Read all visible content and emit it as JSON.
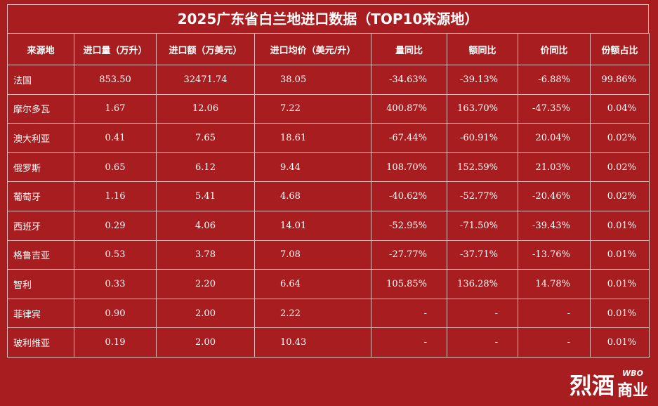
{
  "header": {
    "title": "2025广东省白兰地进口数据（TOP10来源地）"
  },
  "table": {
    "columns": [
      "来源地",
      "进口量（万升）",
      "进口额（万美元）",
      "进口均价（美元/升）",
      "量同比",
      "额同比",
      "价同比",
      "份额占比"
    ],
    "rows": [
      [
        "法国",
        "853.50",
        "32471.74",
        "38.05",
        "-34.63%",
        "-39.13%",
        "-6.88%",
        "99.86%"
      ],
      [
        "摩尔多瓦",
        "1.67",
        "12.06",
        "7.22",
        "400.87%",
        "163.70%",
        "-47.35%",
        "0.04%"
      ],
      [
        "澳大利亚",
        "0.41",
        "7.65",
        "18.61",
        "-67.44%",
        "-60.91%",
        "20.04%",
        "0.02%"
      ],
      [
        "俄罗斯",
        "0.65",
        "6.12",
        "9.44",
        "108.70%",
        "152.59%",
        "21.03%",
        "0.02%"
      ],
      [
        "葡萄牙",
        "1.16",
        "5.41",
        "4.68",
        "-40.62%",
        "-52.77%",
        "-20.46%",
        "0.02%"
      ],
      [
        "西班牙",
        "0.29",
        "4.06",
        "14.01",
        "-52.95%",
        "-71.50%",
        "-39.43%",
        "0.01%"
      ],
      [
        "格鲁吉亚",
        "0.53",
        "3.78",
        "7.08",
        "-27.77%",
        "-37.71%",
        "-13.76%",
        "0.01%"
      ],
      [
        "智利",
        "0.33",
        "2.20",
        "6.64",
        "105.85%",
        "136.28%",
        "14.78%",
        "0.01%"
      ],
      [
        "菲律宾",
        "0.90",
        "2.00",
        "2.22",
        "-",
        "-",
        "-",
        "0.01%"
      ],
      [
        "玻利维亚",
        "0.19",
        "2.00",
        "10.43",
        "-",
        "-",
        "-",
        "0.01%"
      ]
    ]
  },
  "logo": {
    "name": "烈酒",
    "sub": "商业",
    "badge": "WBO"
  }
}
